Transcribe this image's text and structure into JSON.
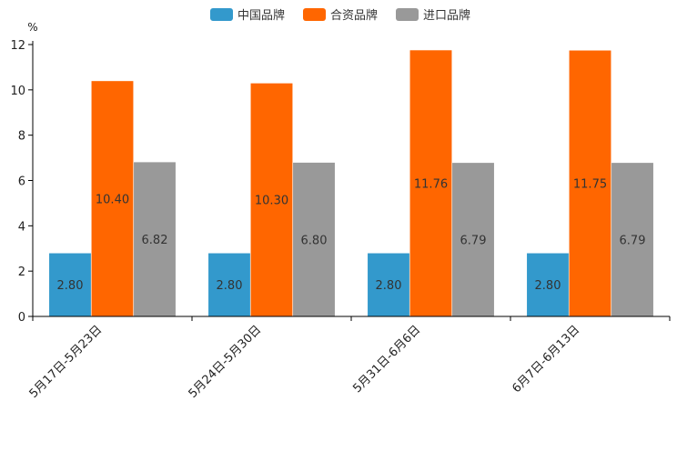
{
  "chart_data": {
    "type": "bar",
    "title": "",
    "xlabel": "",
    "ylabel": "%",
    "ylim": [
      0,
      12
    ],
    "yticks": [
      0,
      2,
      4,
      6,
      8,
      10,
      12
    ],
    "categories": [
      "5月17日-5月23日",
      "5月24日-5月30日",
      "5月31日-6月6日",
      "6月7日-6月13日"
    ],
    "series": [
      {
        "name": "中国品牌",
        "color": "#3399cc",
        "values": [
          2.8,
          2.8,
          2.8,
          2.8
        ],
        "labels": [
          "2.80",
          "2.80",
          "2.80",
          "2.80"
        ]
      },
      {
        "name": "合资品牌",
        "color": "#ff6600",
        "values": [
          10.4,
          10.3,
          11.76,
          11.75
        ],
        "labels": [
          "10.40",
          "10.30",
          "11.76",
          "11.75"
        ]
      },
      {
        "name": "进口品牌",
        "color": "#999999",
        "values": [
          6.82,
          6.8,
          6.79,
          6.79
        ],
        "labels": [
          "6.82",
          "6.80",
          "6.79",
          "6.79"
        ]
      }
    ],
    "legend": {
      "position": "top-center"
    },
    "grid": false
  }
}
